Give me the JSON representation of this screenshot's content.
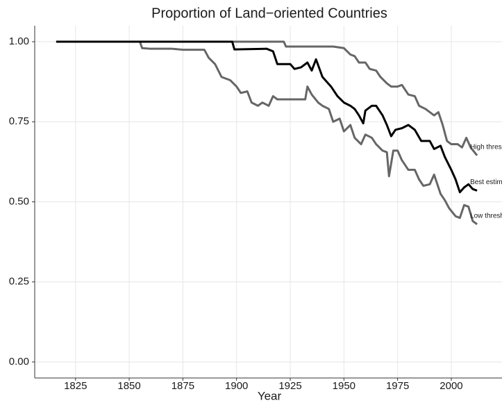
{
  "chart_data": {
    "type": "line",
    "title": "Proportion of Land−oriented Countries",
    "x_label": "Year",
    "xlim": [
      1806,
      2022
    ],
    "xticks": [
      1825,
      1850,
      1875,
      1900,
      1925,
      1950,
      1975,
      2000
    ],
    "ylim": [
      -0.05,
      1.05
    ],
    "yticks": [
      {
        "value": 0,
        "label": "0.00"
      },
      {
        "value": 0.25,
        "label": "0.25"
      },
      {
        "value": 0.5,
        "label": "0.50"
      },
      {
        "value": 0.75,
        "label": "0.75"
      },
      {
        "value": 1,
        "label": "1.00"
      }
    ],
    "grid": true,
    "series": [
      {
        "name": "High threshold",
        "color": "#666666",
        "x": [
          1816,
          1922,
          1923,
          1945,
          1950,
          1953,
          1955,
          1957,
          1960,
          1962,
          1965,
          1967,
          1970,
          1972,
          1975,
          1977,
          1980,
          1983,
          1985,
          1988,
          1992,
          1994,
          1996,
          1998,
          2000,
          2003,
          2005,
          2007,
          2009,
          2012
        ],
        "values": [
          1.0,
          1.0,
          0.985,
          0.985,
          0.98,
          0.96,
          0.955,
          0.935,
          0.935,
          0.915,
          0.91,
          0.89,
          0.87,
          0.86,
          0.86,
          0.865,
          0.835,
          0.83,
          0.8,
          0.79,
          0.77,
          0.78,
          0.74,
          0.69,
          0.68,
          0.68,
          0.67,
          0.7,
          0.67,
          0.645
        ]
      },
      {
        "name": "Low threshold",
        "color": "#666666",
        "x": [
          1816,
          1855,
          1856,
          1860,
          1870,
          1875,
          1885,
          1887,
          1890,
          1893,
          1897,
          1900,
          1902,
          1905,
          1907,
          1910,
          1912,
          1915,
          1917,
          1919,
          1928,
          1932,
          1933,
          1935,
          1938,
          1940,
          1943,
          1945,
          1948,
          1950,
          1953,
          1955,
          1958,
          1960,
          1963,
          1965,
          1968,
          1970,
          1971,
          1972,
          1973,
          1975,
          1977,
          1980,
          1983,
          1985,
          1987,
          1990,
          1992,
          1995,
          1997,
          1999,
          2002,
          2004,
          2006,
          2008,
          2010,
          2012
        ],
        "values": [
          1.0,
          1.0,
          0.98,
          0.978,
          0.978,
          0.975,
          0.975,
          0.95,
          0.93,
          0.89,
          0.88,
          0.86,
          0.84,
          0.845,
          0.81,
          0.8,
          0.81,
          0.8,
          0.83,
          0.82,
          0.82,
          0.82,
          0.86,
          0.835,
          0.81,
          0.8,
          0.79,
          0.75,
          0.76,
          0.72,
          0.74,
          0.7,
          0.68,
          0.71,
          0.7,
          0.68,
          0.66,
          0.655,
          0.58,
          0.62,
          0.66,
          0.66,
          0.63,
          0.6,
          0.6,
          0.57,
          0.55,
          0.555,
          0.585,
          0.525,
          0.505,
          0.48,
          0.455,
          0.45,
          0.49,
          0.485,
          0.44,
          0.43
        ]
      },
      {
        "name": "Best estimate",
        "color": "#000000",
        "x": [
          1816,
          1898,
          1899,
          1914,
          1917,
          1919,
          1925,
          1927,
          1930,
          1933,
          1935,
          1937,
          1940,
          1944,
          1947,
          1950,
          1953,
          1955,
          1957,
          1959,
          1960,
          1963,
          1965,
          1968,
          1970,
          1972,
          1974,
          1977,
          1980,
          1983,
          1986,
          1990,
          1992,
          1995,
          1997,
          2000,
          2002,
          2004,
          2006,
          2008,
          2010,
          2012
        ],
        "values": [
          1.0,
          1.0,
          0.976,
          0.978,
          0.97,
          0.93,
          0.93,
          0.915,
          0.92,
          0.935,
          0.91,
          0.945,
          0.89,
          0.86,
          0.83,
          0.81,
          0.8,
          0.79,
          0.77,
          0.745,
          0.785,
          0.8,
          0.8,
          0.77,
          0.74,
          0.705,
          0.725,
          0.73,
          0.74,
          0.725,
          0.69,
          0.69,
          0.665,
          0.675,
          0.64,
          0.6,
          0.57,
          0.53,
          0.545,
          0.555,
          0.54,
          0.535
        ]
      }
    ]
  }
}
